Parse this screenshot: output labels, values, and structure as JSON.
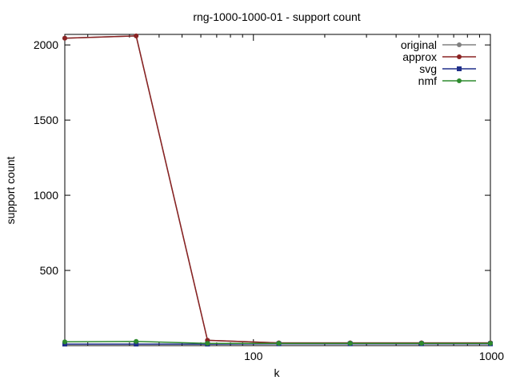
{
  "chart_data": {
    "type": "line",
    "title": "rng-1000-1000-01 - support count",
    "xlabel": "k",
    "ylabel": "support count",
    "xscale": "log",
    "xlim": [
      16,
      1000
    ],
    "ylim": [
      0,
      2070
    ],
    "x_ticks": [
      {
        "value": 100,
        "label": "100"
      },
      {
        "value": 1000,
        "label": "1000"
      }
    ],
    "y_ticks": [
      {
        "value": 500,
        "label": "500"
      },
      {
        "value": 1000,
        "label": "1000"
      },
      {
        "value": 1500,
        "label": "1500"
      },
      {
        "value": 2000,
        "label": "2000"
      }
    ],
    "legend_position": "top-right",
    "grid": false,
    "series": [
      {
        "name": "original",
        "color": "#808080",
        "marker": "circle",
        "points": [
          [
            16,
            2045
          ],
          [
            32,
            2060
          ],
          [
            64,
            35
          ],
          [
            128,
            18
          ],
          [
            256,
            18
          ],
          [
            512,
            18
          ],
          [
            1000,
            18
          ]
        ]
      },
      {
        "name": "approx",
        "color": "#8b2323",
        "marker": "circle",
        "points": [
          [
            16,
            2045
          ],
          [
            32,
            2060
          ],
          [
            64,
            35
          ],
          [
            128,
            18
          ],
          [
            256,
            18
          ],
          [
            512,
            18
          ],
          [
            1000,
            18
          ]
        ]
      },
      {
        "name": "svg",
        "color": "#1f2f8a",
        "marker": "square",
        "points": [
          [
            16,
            10
          ],
          [
            32,
            10
          ],
          [
            64,
            10
          ],
          [
            128,
            12
          ],
          [
            256,
            12
          ],
          [
            512,
            12
          ],
          [
            1000,
            12
          ]
        ]
      },
      {
        "name": "nmf",
        "color": "#2e8b2e",
        "marker": "circle",
        "points": [
          [
            16,
            25
          ],
          [
            32,
            28
          ],
          [
            64,
            15
          ],
          [
            128,
            15
          ],
          [
            256,
            15
          ],
          [
            512,
            15
          ],
          [
            1000,
            15
          ]
        ]
      }
    ]
  }
}
